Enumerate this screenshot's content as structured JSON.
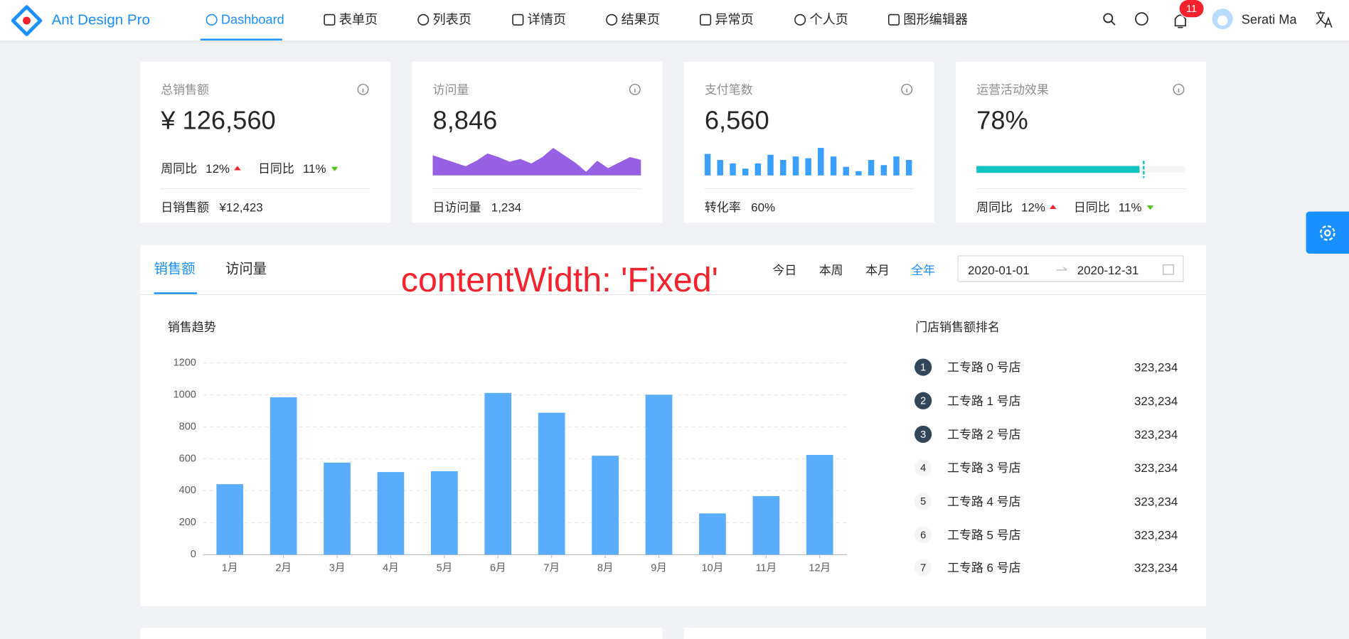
{
  "header": {
    "logo_text": "Ant Design Pro",
    "nav": [
      "Dashboard",
      "表单页",
      "列表页",
      "详情页",
      "结果页",
      "异常页",
      "个人页",
      "图形编辑器"
    ],
    "active_nav": 0,
    "notification_count": 11,
    "user": "Serati Ma"
  },
  "stat_cards": [
    {
      "title": "总销售额",
      "value": "¥ 126,560",
      "trends": [
        {
          "label": "周同比",
          "value": "12%",
          "direction": "up"
        },
        {
          "label": "日同比",
          "value": "11%",
          "direction": "down"
        }
      ],
      "footer_label": "日销售额",
      "footer_value": "¥12,423"
    },
    {
      "title": "访问量",
      "value": "8,846",
      "sparkline": {
        "type": "area",
        "color": "#975fe4",
        "values": [
          22,
          18,
          14,
          10,
          16,
          24,
          20,
          15,
          18,
          13,
          20,
          30,
          22,
          14,
          4,
          16,
          8,
          14,
          20,
          17
        ]
      },
      "footer_label": "日访问量",
      "footer_value": "1,234"
    },
    {
      "title": "支付笔数",
      "value": "6,560",
      "sparkline": {
        "type": "bar",
        "color": "#3aa0ff",
        "values": [
          25,
          18,
          14,
          8,
          14,
          24,
          18,
          22,
          20,
          32,
          22,
          10,
          5,
          18,
          12,
          22,
          18
        ]
      },
      "footer_label": "转化率",
      "footer_value": "60%"
    },
    {
      "title": "运营活动效果",
      "value": "78%",
      "progress": {
        "percent": 78,
        "target": 80,
        "color": "#13c2c2"
      },
      "trends": [
        {
          "label": "周同比",
          "value": "12%",
          "direction": "up"
        },
        {
          "label": "日同比",
          "value": "11%",
          "direction": "down"
        }
      ]
    }
  ],
  "sales_card": {
    "tabs": [
      "销售额",
      "访问量"
    ],
    "active_tab": 0,
    "ranges": [
      "今日",
      "本周",
      "本月",
      "全年"
    ],
    "active_range": 3,
    "date_start": "2020-01-01",
    "date_end": "2020-12-31",
    "annotation": "contentWidth: 'Fixed'",
    "chart": {
      "type": "bar",
      "title": "销售趋势",
      "categories": [
        "1月",
        "2月",
        "3月",
        "4月",
        "5月",
        "6月",
        "7月",
        "8月",
        "9月",
        "10月",
        "11月",
        "12月"
      ],
      "values": [
        441,
        985,
        576,
        517,
        522,
        1012,
        888,
        619,
        1001,
        258,
        366,
        624
      ],
      "color": "#5aacfc",
      "ylim": [
        0,
        1200
      ],
      "yticks": [
        0,
        200,
        400,
        600,
        800,
        1000,
        1200
      ],
      "grid": true
    },
    "ranking": {
      "title": "门店销售额排名",
      "items": [
        {
          "rank": 1,
          "name": "工专路 0 号店",
          "value": "323,234"
        },
        {
          "rank": 2,
          "name": "工专路 1 号店",
          "value": "323,234"
        },
        {
          "rank": 3,
          "name": "工专路 2 号店",
          "value": "323,234"
        },
        {
          "rank": 4,
          "name": "工专路 3 号店",
          "value": "323,234"
        },
        {
          "rank": 5,
          "name": "工专路 4 号店",
          "value": "323,234"
        },
        {
          "rank": 6,
          "name": "工专路 5 号店",
          "value": "323,234"
        },
        {
          "rank": 7,
          "name": "工专路 6 号店",
          "value": "323,234"
        }
      ]
    }
  }
}
